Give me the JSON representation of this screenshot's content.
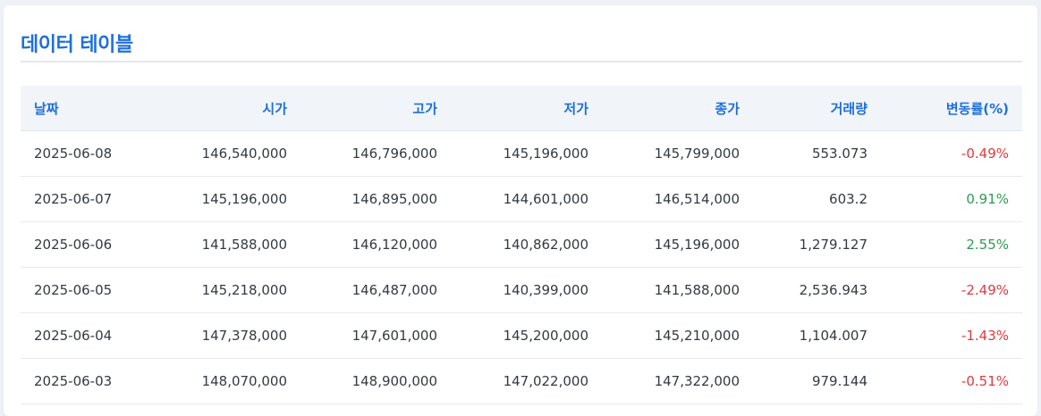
{
  "page": {
    "title": "데이터 테이블"
  },
  "table": {
    "headers": [
      "날짜",
      "시가",
      "고가",
      "저가",
      "종가",
      "거래량",
      "변동률(%)"
    ],
    "rows": [
      {
        "date": "2025-06-08",
        "open": "146,540,000",
        "high": "146,796,000",
        "low": "145,196,000",
        "close": "145,799,000",
        "volume": "553.073",
        "change": "-0.49%",
        "direction": "down"
      },
      {
        "date": "2025-06-07",
        "open": "145,196,000",
        "high": "146,895,000",
        "low": "144,601,000",
        "close": "146,514,000",
        "volume": "603.2",
        "change": "0.91%",
        "direction": "up"
      },
      {
        "date": "2025-06-06",
        "open": "141,588,000",
        "high": "146,120,000",
        "low": "140,862,000",
        "close": "145,196,000",
        "volume": "1,279.127",
        "change": "2.55%",
        "direction": "up"
      },
      {
        "date": "2025-06-05",
        "open": "145,218,000",
        "high": "146,487,000",
        "low": "140,399,000",
        "close": "141,588,000",
        "volume": "2,536.943",
        "change": "-2.49%",
        "direction": "down"
      },
      {
        "date": "2025-06-04",
        "open": "147,378,000",
        "high": "147,601,000",
        "low": "145,200,000",
        "close": "145,210,000",
        "volume": "1,104.007",
        "change": "-1.43%",
        "direction": "down"
      },
      {
        "date": "2025-06-03",
        "open": "148,070,000",
        "high": "148,900,000",
        "low": "147,022,000",
        "close": "147,322,000",
        "volume": "979.144",
        "change": "-0.51%",
        "direction": "down"
      }
    ]
  },
  "colors": {
    "accent": "#1f6fdc",
    "up": "#2e9b4f",
    "down": "#e0393e"
  }
}
